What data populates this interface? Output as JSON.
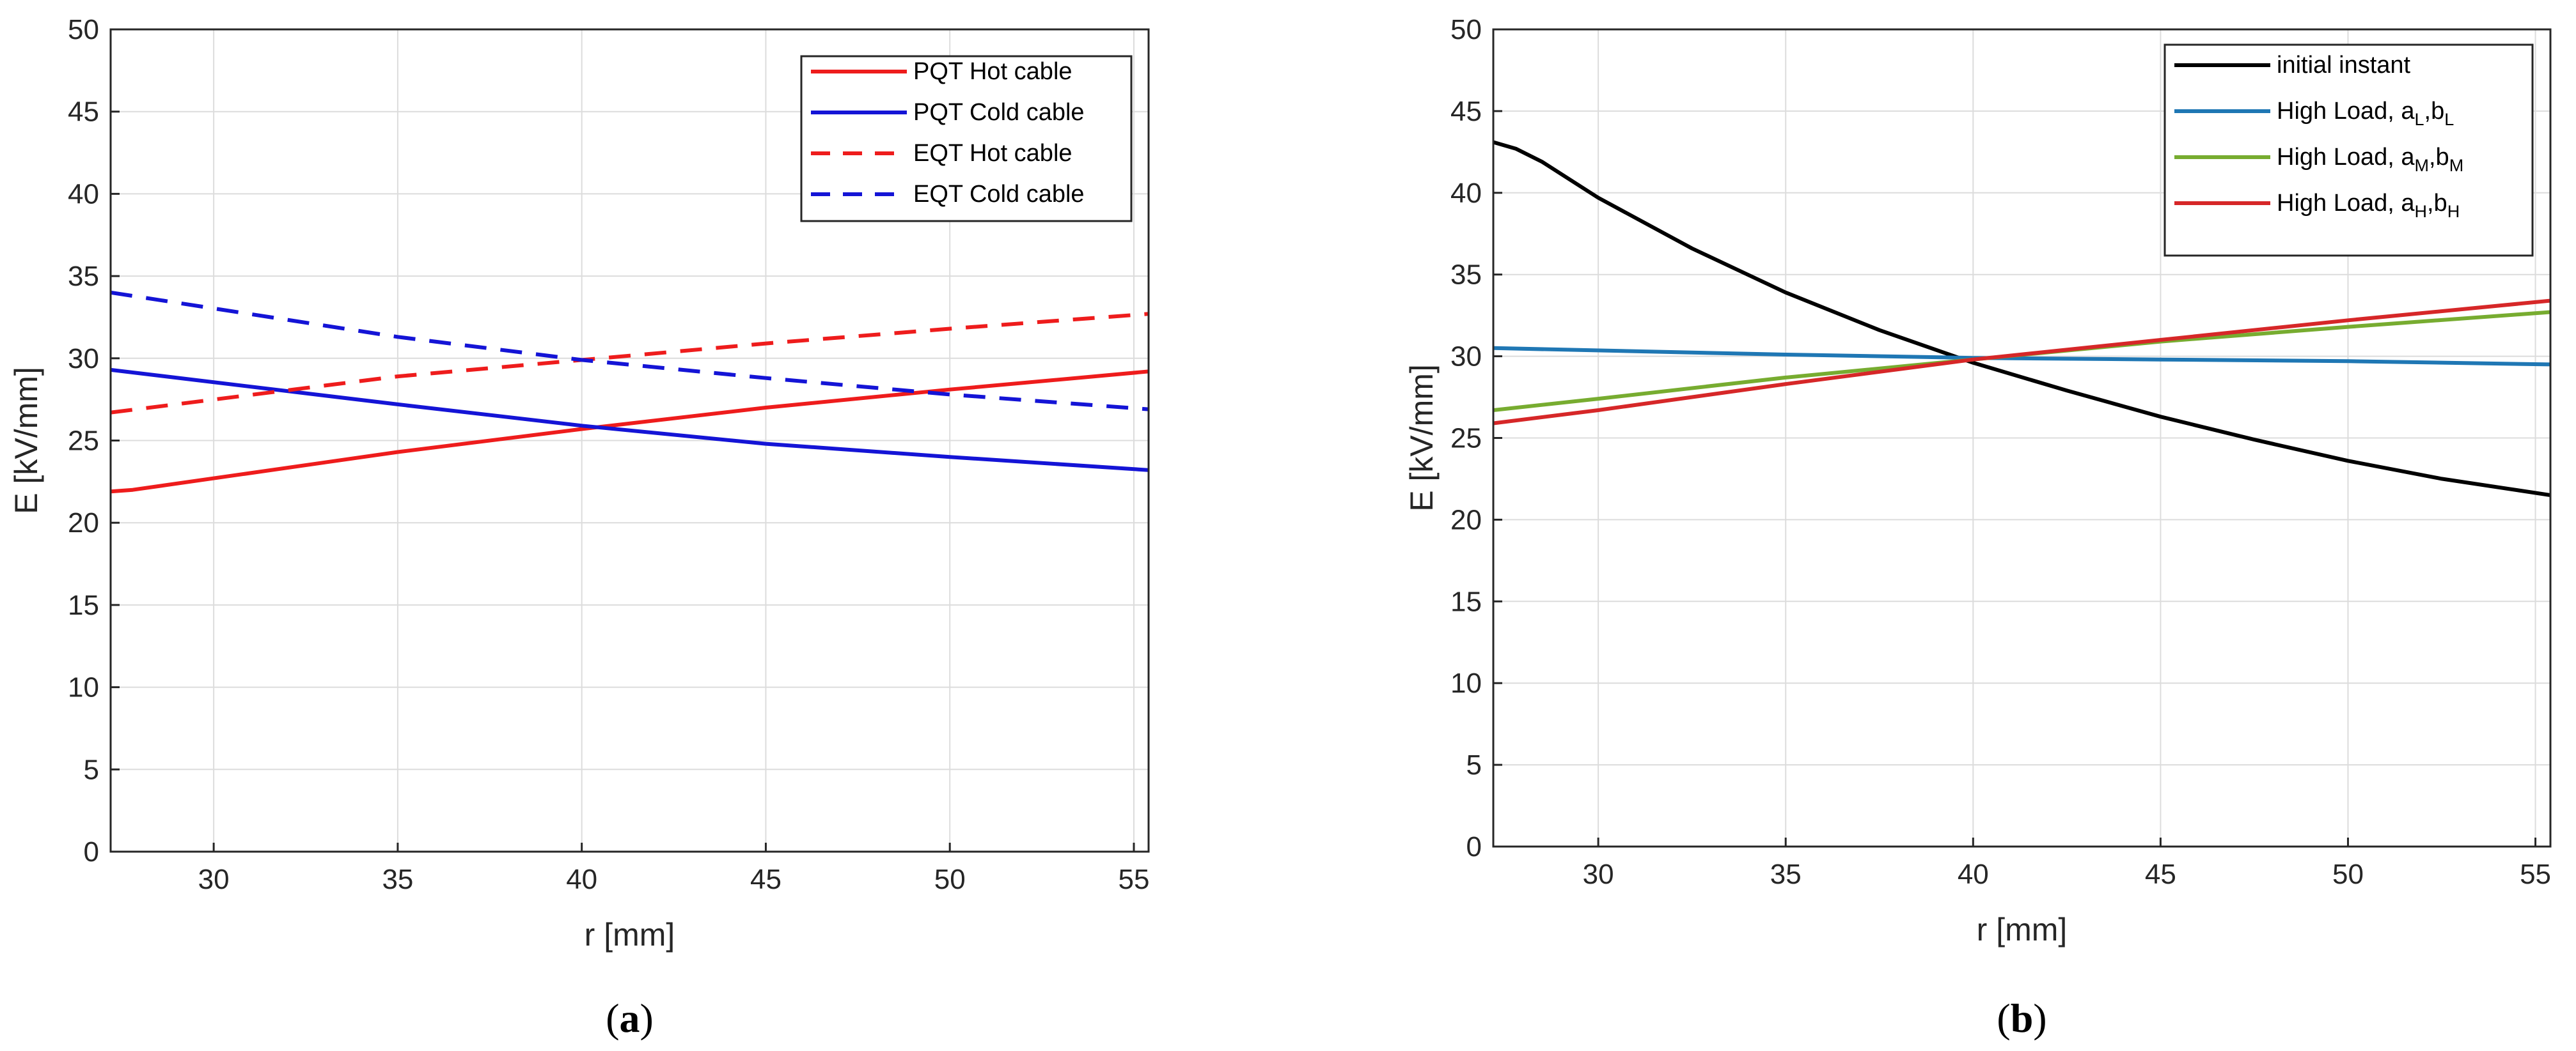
{
  "chart_data": [
    {
      "type": "line",
      "caption_letter": "a",
      "xlabel": "r [mm]",
      "ylabel": "E [kV/mm]",
      "xlim": [
        27.2,
        55.4
      ],
      "ylim": [
        0,
        50
      ],
      "xticks": [
        30,
        35,
        40,
        45,
        50,
        55
      ],
      "yticks": [
        0,
        5,
        10,
        15,
        20,
        25,
        30,
        35,
        40,
        45,
        50
      ],
      "grid": true,
      "legend": "top-right",
      "series": [
        {
          "name": "PQT Hot cable",
          "color": "#ee1c1c",
          "dash": "solid",
          "x": [
            27.2,
            27.8,
            35,
            40,
            45,
            50,
            55.4
          ],
          "y": [
            21.9,
            22.0,
            24.3,
            25.7,
            27.0,
            28.1,
            29.2
          ]
        },
        {
          "name": "PQT Cold cable",
          "color": "#1414d6",
          "dash": "solid",
          "x": [
            27.2,
            35,
            40,
            45,
            50,
            55.4
          ],
          "y": [
            29.3,
            27.2,
            25.9,
            24.8,
            24.0,
            23.2
          ]
        },
        {
          "name": "EQT Hot cable",
          "color": "#ee1c1c",
          "dash": "dashed",
          "x": [
            27.2,
            35,
            40,
            45,
            50,
            55.4
          ],
          "y": [
            26.7,
            28.9,
            29.9,
            30.9,
            31.8,
            32.7
          ]
        },
        {
          "name": "EQT Cold cable",
          "color": "#1414d6",
          "dash": "dashed",
          "x": [
            27.2,
            35,
            40,
            45,
            50,
            55.4
          ],
          "y": [
            34.0,
            31.3,
            29.9,
            28.8,
            27.8,
            26.9
          ]
        }
      ]
    },
    {
      "type": "line",
      "caption_letter": "b",
      "xlabel": "r [mm]",
      "ylabel": "E [kV/mm]",
      "xlim": [
        27.2,
        55.4
      ],
      "ylim": [
        0,
        50
      ],
      "xticks": [
        30,
        35,
        40,
        45,
        50,
        55
      ],
      "yticks": [
        0,
        5,
        10,
        15,
        20,
        25,
        30,
        35,
        40,
        45,
        50
      ],
      "grid": true,
      "legend": "top-right",
      "series": [
        {
          "name": "initial instant",
          "sub1": "",
          "sub2": "",
          "color": "#000000",
          "dash": "solid",
          "x": [
            27.2,
            27.8,
            28.5,
            30,
            32.5,
            35,
            37.5,
            40,
            42.5,
            45,
            47.5,
            50,
            52.5,
            55.4
          ],
          "y": [
            43.1,
            42.7,
            41.9,
            39.7,
            36.6,
            33.9,
            31.6,
            29.6,
            27.9,
            26.3,
            24.9,
            23.6,
            22.5,
            21.5
          ]
        },
        {
          "name": "High Load, a",
          "sub1": "L",
          "mid": ",b",
          "sub2": "L",
          "color": "#1f77b4",
          "dash": "solid",
          "x": [
            27.2,
            35,
            40,
            45,
            50,
            55.4
          ],
          "y": [
            30.5,
            30.1,
            29.9,
            29.8,
            29.7,
            29.5
          ]
        },
        {
          "name": "High Load, a",
          "sub1": "M",
          "mid": ",b",
          "sub2": "M",
          "color": "#77ac30",
          "dash": "solid",
          "x": [
            27.2,
            30,
            35,
            40,
            45,
            50,
            55.4
          ],
          "y": [
            26.7,
            27.4,
            28.7,
            29.8,
            30.9,
            31.8,
            32.7
          ]
        },
        {
          "name": "High Load, a",
          "sub1": "H",
          "mid": ",b",
          "sub2": "H",
          "color": "#d62728",
          "dash": "solid",
          "x": [
            27.2,
            30,
            35,
            40,
            45,
            50,
            55.4
          ],
          "y": [
            25.9,
            26.7,
            28.3,
            29.8,
            31.0,
            32.2,
            33.4
          ]
        }
      ]
    }
  ]
}
